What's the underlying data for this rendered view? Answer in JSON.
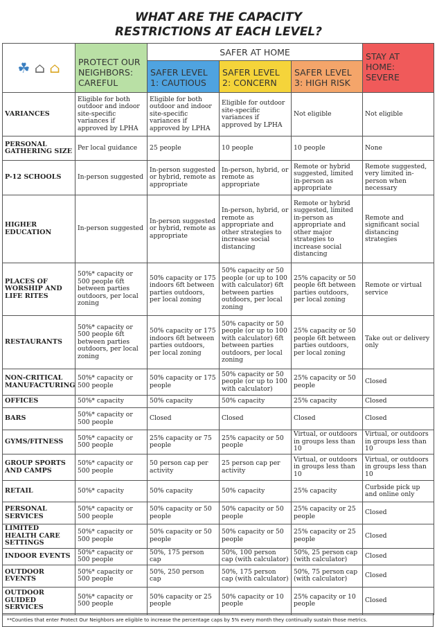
{
  "title": [
    "WHAT ARE THE CAPACITY",
    "RESTRICTIONS AT EACH LEVEL?"
  ],
  "header": {
    "protect": "PROTECT OUR NEIGHBORS: CAREFUL",
    "safer_at_home": "SAFER AT HOME",
    "level1": "SAFER LEVEL 1: CAUTIOUS",
    "level2": "SAFER LEVEL 2: CONCERN",
    "level3": "SAFER LEVEL 3: HIGH RISK",
    "stay": "STAY AT HOME: SEVERE"
  },
  "colors": {
    "protect": "#b9e0a5",
    "level1": "#4fa3e0",
    "level2": "#f5d43a",
    "level3": "#f4a56a",
    "stay": "#f05a5a",
    "header_bar": "#fff"
  },
  "icons": [
    "hands-family-icon",
    "house-drop-icon",
    "house-sun-icon"
  ],
  "rows": [
    {
      "label": "VARIANCES",
      "cells": [
        "Eligible for both outdoor and indoor site-specific variances if approved by LPHA",
        "Eligible for both outdoor and indoor site-specific variances if approved by LPHA",
        "Eligible for outdoor site-specific variances if approved by LPHA",
        "Not eligible",
        "Not eligible"
      ]
    },
    {
      "label": "PERSONAL GATHERING SIZE",
      "cells": [
        "Per local guidance",
        "25 people",
        "10 people",
        "10 people",
        "None"
      ]
    },
    {
      "label": "P-12 SCHOOLS",
      "cells": [
        "In-person suggested",
        "In-person suggested or hybrid, remote as appropriate",
        "In-person, hybrid, or remote as appropriate",
        "Remote or hybrid suggested, limited in-person as appropriate",
        "Remote suggested, very limited in-person when necessary"
      ]
    },
    {
      "label": "HIGHER EDUCATION",
      "cells": [
        "In-person suggested",
        "In-person suggested or hybrid, remote as appropriate",
        "In-person, hybrid, or remote as appropriate and other strategies to increase social distancing",
        "Remote or hybrid suggested, limited in-person as appropriate and other major strategies to increase social distancing",
        "Remote and significant social distancing strategies"
      ]
    },
    {
      "label": "PLACES OF WORSHIP AND LIFE RITES",
      "cells": [
        "50%* capacity or 500 people 6ft between parties outdoors, per local zoning",
        "50% capacity or 175 indoors 6ft between parties outdoors, per local zoning",
        "50% capacity or 50 people (or up to 100 with calculator) 6ft between parties outdoors, per local zoning",
        "25% capacity or 50 people 6ft between parties outdoors, per local zoning",
        "Remote or virtual service"
      ]
    },
    {
      "label": "RESTAURANTS",
      "cells": [
        "50%* capacity or 500 people 6ft between parties outdoors, per local zoning",
        "50% capacity or 175 indoors 6ft between parties outdoors, per local zoning",
        "50% capacity or 50 people (or up to 100 with calculator) 6ft between parties outdoors, per local zoning",
        "25% capacity or 50 people 6ft between parties outdoors, per local zoning",
        "Take out or delivery only"
      ]
    },
    {
      "label": "NON-CRITICAL MANUFACTURING",
      "cells": [
        "50%* capacity or 500 people",
        "50% capacity or 175 people",
        "50% capacity or 50 people (or up to 100 with calculator)",
        "25% capacity or 50 people",
        "Closed"
      ]
    },
    {
      "label": "OFFICES",
      "cells": [
        "50%* capacity",
        "50% capacity",
        "50% capacity",
        "25% capacity",
        "Closed"
      ]
    },
    {
      "label": "BARS",
      "cells": [
        "50%* capacity or 500 people",
        "Closed",
        "Closed",
        "Closed",
        "Closed"
      ]
    },
    {
      "label": "GYMS/FITNESS",
      "cells": [
        "50%* capacity or 500 people",
        "25% capacity or 75 people",
        "25% capacity or 50 people",
        "Virtual, or outdoors in groups less than 10",
        "Virtual, or outdoors in groups less than 10"
      ]
    },
    {
      "label": "GROUP SPORTS AND CAMPS",
      "cells": [
        "50%* capacity or 500 people",
        "50 person cap per activity",
        "25 person cap per activity",
        "Virtual, or outdoors in groups less than 10",
        "Virtual, or outdoors in groups less than 10"
      ]
    },
    {
      "label": "RETAIL",
      "cells": [
        "50%* capacity",
        "50% capacity",
        "50% capacity",
        "25% capacity",
        "Curbside pick up and online only"
      ]
    },
    {
      "label": "PERSONAL SERVICES",
      "cells": [
        "50%* capacity or 500 people",
        "50% capacity or 50 people",
        "50% capacity or 50 people",
        "25% capacity or 25 people",
        "Closed"
      ]
    },
    {
      "label": "LIMITED HEALTH CARE SETTINGS",
      "cells": [
        "50%* capacity or 500 people",
        "50% capacity or 50 people",
        "50% capacity or 50 people",
        "25% capacity or 25 people",
        "Closed"
      ]
    },
    {
      "label": "INDOOR EVENTS",
      "cells": [
        "50%* capacity or 500 people",
        "50%, 175 person cap",
        "50%, 100 person cap (with calculator)",
        "50%, 25 person cap (with calculator)",
        "Closed"
      ]
    },
    {
      "label": "OUTDOOR EVENTS",
      "cells": [
        "50%* capacity or 500 people",
        "50%, 250 person cap",
        "50%, 175 person cap (with calculator)",
        "50%, 75 person cap (with calculator)",
        "Closed"
      ]
    },
    {
      "label": "OUTDOOR GUIDED SERVICES",
      "cells": [
        "50%* capacity or 500 people",
        "50% capacity or 25 people",
        "50% capacity or 10 people",
        "25% capacity or 10 people",
        "Closed"
      ]
    }
  ],
  "footnote": "**Counties that enter Protect Our Neighbors are eligible to increase the percentage caps by 5% every month they continually sustain those metrics."
}
